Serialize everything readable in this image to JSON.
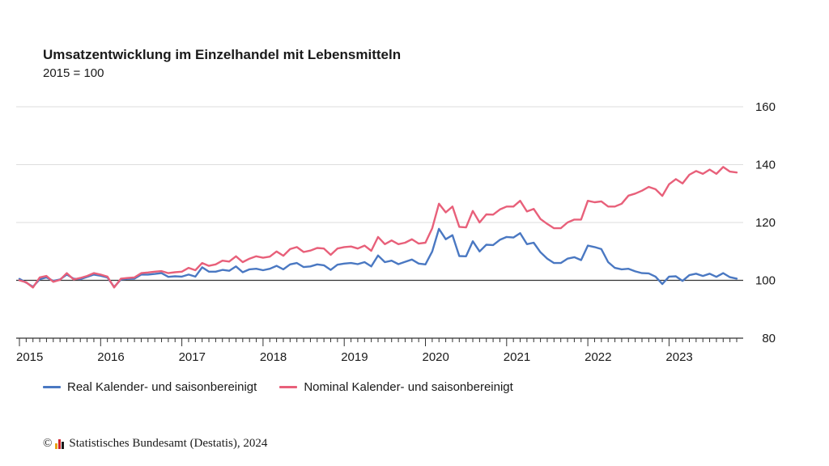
{
  "chart_data": {
    "type": "line",
    "title": "Umsatzentwicklung im Einzelhandel mit Lebensmitteln",
    "subtitle": "2015 = 100",
    "x_ticks": [
      "2015",
      "2016",
      "2017",
      "2018",
      "2019",
      "2020",
      "2021",
      "2022",
      "2023"
    ],
    "x_range": [
      "2015-01",
      "2023-11"
    ],
    "ylim": [
      80,
      160
    ],
    "y_ticks": [
      80,
      100,
      120,
      140,
      160
    ],
    "reference_line": 100,
    "grid": true,
    "legend": "bottom-left",
    "series": [
      {
        "name": "Real Kalender- und saisonbereinigt",
        "color": "#4a78c2",
        "values": [
          100.5,
          99.2,
          97.8,
          100.4,
          101.0,
          99.8,
          100.3,
          102.0,
          100.6,
          100.4,
          101.2,
          102.0,
          101.6,
          101.0,
          97.7,
          100.3,
          100.5,
          100.6,
          102.0,
          102.0,
          102.2,
          102.5,
          101.2,
          101.4,
          101.3,
          102.0,
          101.3,
          104.5,
          103.0,
          103.0,
          103.6,
          103.3,
          104.8,
          102.8,
          103.8,
          104.0,
          103.5,
          104.0,
          105.0,
          103.8,
          105.5,
          106.0,
          104.6,
          104.8,
          105.5,
          105.2,
          103.6,
          105.4,
          105.8,
          106.0,
          105.6,
          106.3,
          104.8,
          108.6,
          106.3,
          106.8,
          105.6,
          106.4,
          107.2,
          105.8,
          105.5,
          110.0,
          117.8,
          114.2,
          115.6,
          108.4,
          108.3,
          113.5,
          110.0,
          112.3,
          112.2,
          114.0,
          115.0,
          114.8,
          116.3,
          112.5,
          113.0,
          109.7,
          107.5,
          106.0,
          106.0,
          107.5,
          108.0,
          107.0,
          112.0,
          111.5,
          110.8,
          106.3,
          104.3,
          103.8,
          104.0,
          103.1,
          102.5,
          102.4,
          101.3,
          98.7,
          101.3,
          101.4,
          99.8,
          101.8,
          102.3,
          101.5,
          102.3,
          101.2,
          102.5,
          101.1,
          100.6
        ]
      },
      {
        "name": "Nominal Kalender- und saisonbereinigt",
        "color": "#e8607a",
        "values": [
          100.0,
          99.3,
          97.5,
          101.0,
          101.5,
          99.5,
          100.2,
          102.5,
          100.3,
          100.8,
          101.5,
          102.5,
          102.0,
          101.3,
          97.5,
          100.6,
          100.8,
          101.0,
          102.5,
          102.7,
          103.0,
          103.2,
          102.5,
          102.8,
          103.0,
          104.3,
          103.5,
          106.0,
          105.0,
          105.5,
          106.8,
          106.5,
          108.3,
          106.3,
          107.5,
          108.3,
          107.8,
          108.2,
          110.0,
          108.5,
          110.8,
          111.5,
          109.8,
          110.3,
          111.2,
          111.0,
          108.8,
          111.0,
          111.5,
          111.7,
          111.0,
          112.0,
          110.2,
          115.0,
          112.5,
          113.8,
          112.5,
          113.0,
          114.2,
          112.7,
          113.0,
          118.0,
          126.5,
          123.5,
          125.5,
          118.5,
          118.3,
          124.0,
          120.0,
          122.8,
          122.7,
          124.5,
          125.5,
          125.5,
          127.5,
          123.8,
          124.7,
          121.2,
          119.5,
          118.0,
          118.0,
          120.0,
          121.0,
          121.0,
          127.5,
          127.0,
          127.3,
          125.5,
          125.5,
          126.5,
          129.3,
          130.0,
          131.0,
          132.3,
          131.5,
          129.2,
          133.2,
          135.0,
          133.5,
          136.5,
          137.8,
          136.8,
          138.3,
          136.8,
          139.2,
          137.6,
          137.3
        ]
      }
    ]
  },
  "footer": {
    "copyright_symbol": "©",
    "source": "Statistisches Bundesamt (Destatis), 2024",
    "logo_colors": [
      "#e8a317",
      "#d2232a",
      "#1a1a1a"
    ]
  }
}
